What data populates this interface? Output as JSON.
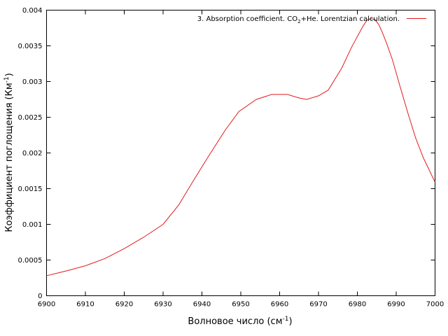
{
  "chart_data": {
    "type": "line",
    "title": "",
    "xlabel": "Волновое число (см",
    "xlabel_sup": "-1",
    "xlabel_tail": ")",
    "ylabel": "Коэффициент поглощения (Км",
    "ylabel_sup": "-1",
    "ylabel_tail": ")",
    "xlim": [
      6900,
      7000
    ],
    "ylim": [
      0,
      0.004
    ],
    "x_ticks": [
      "6900",
      "6910",
      "6920",
      "6930",
      "6940",
      "6950",
      "6960",
      "6970",
      "6980",
      "6990",
      "7000"
    ],
    "y_ticks": [
      "0",
      "0.0005",
      "0.001",
      "0.0015",
      "0.002",
      "0.0025",
      "0.003",
      "0.0035",
      "0.004"
    ],
    "grid": false,
    "legend_position": "top-right",
    "legend": {
      "part1": "3. Absorption coefficient. CO",
      "sub": "2",
      "part2": "+He. Lorentzian calculation."
    },
    "series": [
      {
        "color": "#e41a1c",
        "x": [
          6900,
          6903,
          6906,
          6910,
          6915,
          6920,
          6925,
          6930,
          6934,
          6938,
          6942,
          6946,
          6949.5,
          6954,
          6958,
          6962,
          6965,
          6967,
          6970,
          6972.5,
          6976,
          6978.5,
          6981.5,
          6982.5,
          6983.5,
          6984.5,
          6985.5,
          6986.5,
          6987.5,
          6989,
          6991,
          6993,
          6995,
          6997,
          7000
        ],
        "y": [
          0.00028,
          0.00032,
          0.00036,
          0.00042,
          0.00052,
          0.00066,
          0.00082,
          0.001,
          0.00127,
          0.00163,
          0.00198,
          0.00232,
          0.00258,
          0.00275,
          0.00282,
          0.00282,
          0.00277,
          0.00275,
          0.0028,
          0.00288,
          0.00319,
          0.00348,
          0.00378,
          0.00386,
          0.00388,
          0.00387,
          0.0038,
          0.00368,
          0.00354,
          0.00331,
          0.00293,
          0.00256,
          0.00221,
          0.00193,
          0.00159
        ]
      }
    ]
  }
}
